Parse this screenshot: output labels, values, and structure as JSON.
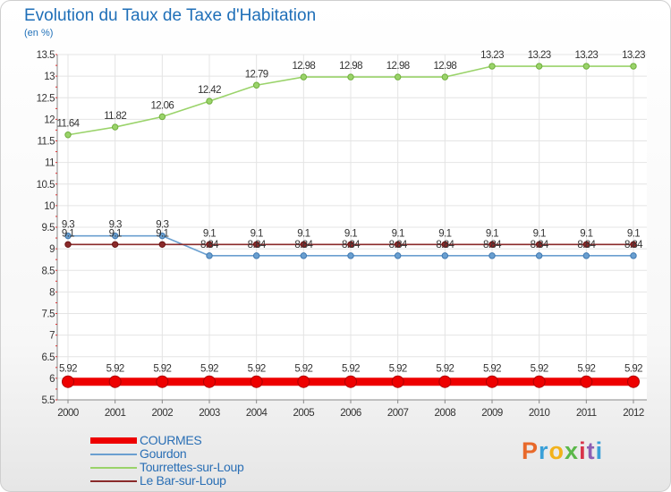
{
  "title": "Evolution du Taux de Taxe d'Habitation",
  "unit_label": "(en %)",
  "logo": {
    "text": "Proxiti",
    "colors": [
      "#e8692a",
      "#3aa0d8",
      "#f2b21b",
      "#5bb84a",
      "#d8344a",
      "#8e5fb3",
      "#3aa0d8"
    ]
  },
  "chart_data": {
    "type": "line",
    "title": "Evolution du Taux de Taxe d'Habitation",
    "ylabel": "(en %)",
    "xlabel": "",
    "ylim": [
      5.5,
      13.5
    ],
    "yticks": [
      "5.5",
      "6",
      "6.5",
      "7",
      "7.5",
      "8",
      "8.5",
      "9",
      "9.5",
      "10",
      "10.5",
      "11",
      "11.5",
      "12",
      "12.5",
      "13",
      "13.5"
    ],
    "x": [
      "2000",
      "2001",
      "2002",
      "2003",
      "2004",
      "2005",
      "2006",
      "2007",
      "2008",
      "2009",
      "2010",
      "2011",
      "2012"
    ],
    "grid": true,
    "legend": "bottom-left",
    "series": [
      {
        "name": "COURMES",
        "color": "#ee0000",
        "emphasis": true,
        "values": [
          5.92,
          5.92,
          5.92,
          5.92,
          5.92,
          5.92,
          5.92,
          5.92,
          5.92,
          5.92,
          5.92,
          5.92,
          5.92
        ],
        "labels": [
          "5.92",
          "5.92",
          "5.92",
          "5.92",
          "5.92",
          "5.92",
          "5.92",
          "5.92",
          "5.92",
          "5.92",
          "5.92",
          "5.92",
          "5.92"
        ]
      },
      {
        "name": "Gourdon",
        "color": "#6a9fd0",
        "values": [
          9.3,
          9.3,
          9.3,
          8.84,
          8.84,
          8.84,
          8.84,
          8.84,
          8.84,
          8.84,
          8.84,
          8.84,
          8.84
        ],
        "labels": [
          "9.3",
          "9.3",
          "9.3",
          "8.84",
          "8.84",
          "8.84",
          "8.84",
          "8.84",
          "8.84",
          "8.84",
          "8.84",
          "8.84",
          "8.84"
        ]
      },
      {
        "name": "Tourrettes-sur-Loup",
        "color": "#9ad36a",
        "values": [
          11.64,
          11.82,
          12.06,
          12.42,
          12.79,
          12.98,
          12.98,
          12.98,
          12.98,
          13.23,
          13.23,
          13.23,
          13.23
        ],
        "labels": [
          "11.64",
          "11.82",
          "12.06",
          "12.42",
          "12.79",
          "12.98",
          "12.98",
          "12.98",
          "12.98",
          "13.23",
          "13.23",
          "13.23",
          "13.23"
        ]
      },
      {
        "name": "Le Bar-sur-Loup",
        "color": "#8a2a2a",
        "values": [
          9.1,
          9.1,
          9.1,
          9.1,
          9.1,
          9.1,
          9.1,
          9.1,
          9.1,
          9.1,
          9.1,
          9.1,
          9.1
        ],
        "labels": [
          "9.1",
          "9.1",
          "9.1",
          "9.1",
          "9.1",
          "9.1",
          "9.1",
          "9.1",
          "9.1",
          "9.1",
          "9.1",
          "9.1",
          "9.1"
        ]
      }
    ]
  }
}
